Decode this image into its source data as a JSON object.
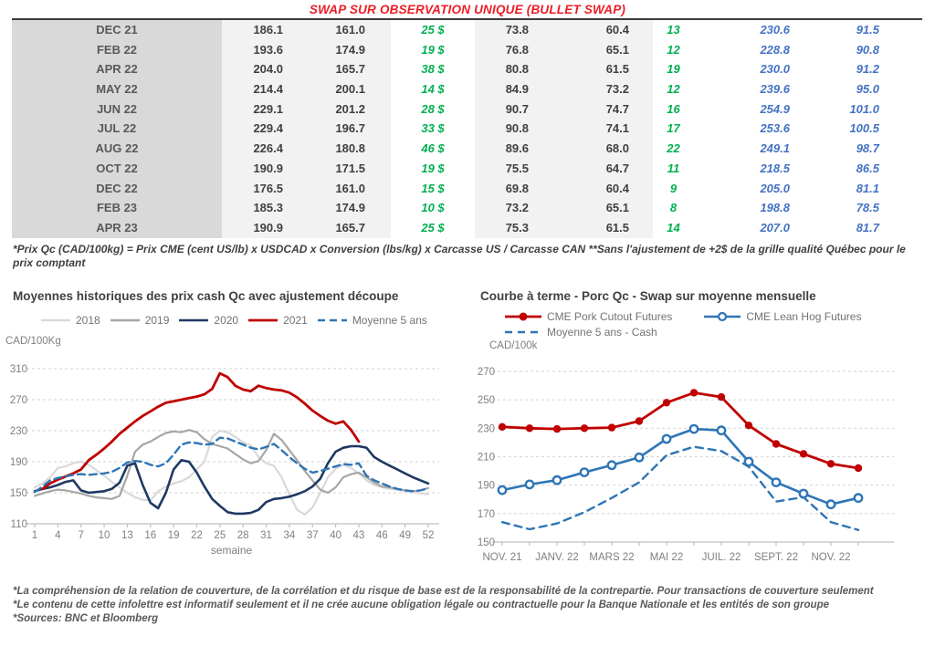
{
  "page_title": "SWAP SUR OBSERVATION UNIQUE (BULLET SWAP)",
  "colors": {
    "title_red": "#ed1c24",
    "table_green": "#00b050",
    "table_blue": "#4472c4",
    "grid_gray": "#d9d9d9",
    "axis_text": "#7f7f7f"
  },
  "table": {
    "rows": [
      {
        "month": "DEC 21",
        "values": [
          "186.1",
          "161.0",
          "25 $",
          "73.8",
          "60.4",
          "13",
          "230.6",
          "91.5"
        ]
      },
      {
        "month": "FEB 22",
        "values": [
          "193.6",
          "174.9",
          "19 $",
          "76.8",
          "65.1",
          "12",
          "228.8",
          "90.8"
        ]
      },
      {
        "month": "APR 22",
        "values": [
          "204.0",
          "165.7",
          "38 $",
          "80.8",
          "61.5",
          "19",
          "230.0",
          "91.2"
        ]
      },
      {
        "month": "MAY 22",
        "values": [
          "214.4",
          "200.1",
          "14 $",
          "84.9",
          "73.2",
          "12",
          "239.6",
          "95.0"
        ]
      },
      {
        "month": "JUN 22",
        "values": [
          "229.1",
          "201.2",
          "28 $",
          "90.7",
          "74.7",
          "16",
          "254.9",
          "101.0"
        ]
      },
      {
        "month": "JUL 22",
        "values": [
          "229.4",
          "196.7",
          "33 $",
          "90.8",
          "74.1",
          "17",
          "253.6",
          "100.5"
        ]
      },
      {
        "month": "AUG 22",
        "values": [
          "226.4",
          "180.8",
          "46 $",
          "89.6",
          "68.0",
          "22",
          "249.1",
          "98.7"
        ]
      },
      {
        "month": "OCT 22",
        "values": [
          "190.9",
          "171.5",
          "19 $",
          "75.5",
          "64.7",
          "11",
          "218.5",
          "86.5"
        ]
      },
      {
        "month": "DEC 22",
        "values": [
          "176.5",
          "161.0",
          "15 $",
          "69.8",
          "60.4",
          "9",
          "205.0",
          "81.1"
        ]
      },
      {
        "month": "FEB 23",
        "values": [
          "185.3",
          "174.9",
          "10 $",
          "73.2",
          "65.1",
          "8",
          "198.8",
          "78.5"
        ]
      },
      {
        "month": "APR 23",
        "values": [
          "190.9",
          "165.7",
          "25 $",
          "75.3",
          "61.5",
          "14",
          "207.0",
          "81.7"
        ]
      }
    ]
  },
  "table_footnote": "*Prix Qc (CAD/100kg) = Prix CME (cent US/lb) x USDCAD x Conversion (lbs/kg) x Carcasse US / Carcasse CAN **Sans l'ajustement de +2$ de la grille qualité Québec pour le prix comptant",
  "chart_data": [
    {
      "type": "line",
      "title": "Moyennes historiques des prix cash Qc avec ajustement découpe",
      "ylabel": "CAD/100Kg",
      "xlabel": "semaine",
      "ylim": [
        110,
        310
      ],
      "ystep": 40,
      "xcount": 52,
      "x_tick_positions": [
        0,
        3,
        6,
        9,
        12,
        15,
        18,
        21,
        24,
        27,
        30,
        33,
        36,
        39,
        42,
        45,
        48,
        51
      ],
      "x_tick_labels": [
        "1",
        "4",
        "7",
        "10",
        "13",
        "16",
        "19",
        "22",
        "25",
        "28",
        "31",
        "34",
        "37",
        "40",
        "43",
        "46",
        "49",
        "52"
      ],
      "grid": true,
      "legend_position": "top",
      "series": [
        {
          "name": "2018",
          "color": "#d9d9d9",
          "width": 2.2,
          "values": [
            157,
            162,
            170,
            182,
            184,
            188,
            190,
            186,
            179,
            172,
            164,
            157,
            150,
            144,
            141,
            140,
            152,
            158,
            162,
            165,
            170,
            180,
            190,
            222,
            230,
            228,
            222,
            215,
            211,
            196,
            188,
            185,
            170,
            148,
            128,
            122,
            131,
            150,
            170,
            181,
            186,
            182,
            175,
            166,
            160,
            157,
            155,
            154,
            152,
            151,
            149,
            148
          ]
        },
        {
          "name": "2019",
          "color": "#a6a6a6",
          "width": 2.2,
          "values": [
            146,
            149,
            152,
            154,
            153,
            151,
            149,
            146,
            144,
            143,
            142,
            146,
            172,
            203,
            212,
            216,
            222,
            227,
            229,
            228,
            231,
            228,
            219,
            213,
            210,
            207,
            200,
            193,
            188,
            191,
            205,
            226,
            218,
            205,
            192,
            178,
            166,
            154,
            150,
            157,
            170,
            174,
            176,
            170,
            163,
            158,
            157,
            155,
            153,
            152,
            153,
            156
          ]
        },
        {
          "name": "2020",
          "color": "#1f3864",
          "width": 2.6,
          "values": [
            152,
            155,
            157,
            160,
            164,
            166,
            153,
            150,
            151,
            152,
            155,
            163,
            185,
            188,
            160,
            137,
            130,
            150,
            180,
            192,
            190,
            176,
            158,
            142,
            133,
            125,
            123,
            123,
            124,
            128,
            138,
            142,
            143,
            145,
            148,
            152,
            158,
            168,
            188,
            203,
            208,
            210,
            210,
            208,
            196,
            190,
            185,
            180,
            175,
            170,
            166,
            162
          ]
        },
        {
          "name": "2021",
          "color": "#c00000",
          "width": 2.8,
          "values": [
            null,
            155,
            162,
            167,
            171,
            175,
            180,
            192,
            199,
            207,
            216,
            226,
            234,
            242,
            249,
            255,
            261,
            266,
            268,
            270,
            272,
            274,
            277,
            284,
            304,
            299,
            288,
            283,
            281,
            288,
            285,
            283,
            282,
            279,
            273,
            265,
            256,
            249,
            243,
            239,
            242,
            231,
            216,
            null,
            null,
            null,
            null,
            null,
            null,
            null,
            null,
            null
          ]
        },
        {
          "name": "Moyenne 5 ans",
          "color": "#2e75b6",
          "width": 2.4,
          "dash": "8 5",
          "values": [
            151,
            158,
            166,
            169,
            171,
            173,
            174,
            173,
            174,
            175,
            177,
            182,
            189,
            191,
            190,
            186,
            184,
            188,
            199,
            212,
            215,
            214,
            212,
            213,
            221,
            220,
            216,
            212,
            208,
            206,
            209,
            213,
            205,
            196,
            188,
            181,
            176,
            178,
            181,
            184,
            187,
            186,
            188,
            172,
            166,
            162,
            158,
            155,
            153,
            152,
            153,
            156
          ]
        }
      ]
    },
    {
      "type": "line",
      "title": "Courbe à terme - Porc Qc - Swap sur moyenne mensuelle",
      "ylabel": "CAD/100k",
      "xlabel": "",
      "ylim": [
        150,
        270
      ],
      "ystep": 20,
      "xcount": 14,
      "x_tick_positions": [
        0,
        2,
        4,
        6,
        8,
        10,
        12
      ],
      "x_tick_labels": [
        "NOV. 21",
        "JANV. 22",
        "MARS 22",
        "MAI 22",
        "JUIL. 22",
        "SEPT. 22",
        "NOV. 22"
      ],
      "x_minor_ticks": [
        0,
        1,
        2,
        3,
        4,
        5,
        6,
        7,
        8,
        9,
        10,
        11,
        12,
        13
      ],
      "grid": true,
      "legend_position": "top",
      "series": [
        {
          "name": "CME Pork Cutout Futures",
          "color": "#c00000",
          "width": 2.8,
          "marker": "dot",
          "values": [
            231,
            230,
            229.5,
            230,
            230.5,
            235,
            248,
            255,
            252,
            232,
            219,
            212,
            205,
            202
          ]
        },
        {
          "name": "CME Lean Hog Futures",
          "color": "#2e75b6",
          "width": 2.6,
          "marker": "open",
          "values": [
            186.5,
            190.5,
            193.5,
            199,
            204,
            209.5,
            222.5,
            229.5,
            228.5,
            206.5,
            192,
            184,
            176.5,
            181
          ]
        },
        {
          "name": "Moyenne 5 ans - Cash",
          "color": "#2e75b6",
          "width": 2.4,
          "dash": "8 6",
          "values": [
            164,
            159,
            163,
            171,
            181,
            192,
            211,
            217,
            214,
            203,
            178.5,
            181.5,
            164,
            158.5
          ]
        }
      ]
    }
  ],
  "footer": {
    "lines": [
      "*La compréhension de la relation de couverture, de la corrélation et du risque de base est de la responsabilité de la contrepartie. Pour transactions de couverture seulement",
      "*Le contenu de cette infolettre est informatif seulement et il ne crée aucune obligation légale ou contractuelle pour la Banque Nationale et les entités de son groupe",
      "*Sources: BNC et Bloomberg"
    ]
  }
}
